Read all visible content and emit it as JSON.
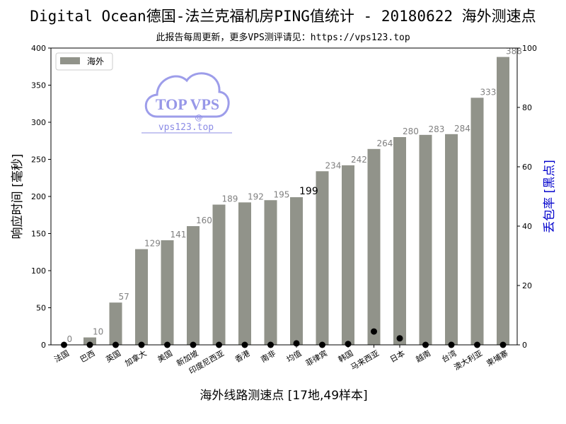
{
  "chart_data": {
    "type": "bar",
    "title": "Digital Ocean德国-法兰克福机房PING值统计 - 20180622 海外测速点",
    "subtitle": "此报告每周更新，更多VPS测评请见：https://vps123.top",
    "xlabel": "海外线路测速点 [17地,49样本]",
    "ylabel": "响应时间 [毫秒]",
    "y2label": "丢包率 [黑点]",
    "categories": [
      "法国",
      "巴西",
      "英国",
      "加拿大",
      "美国",
      "新加坡",
      "印度尼西亚",
      "香港",
      "南非",
      "均值",
      "菲律宾",
      "韩国",
      "马来西亚",
      "日本",
      "越南",
      "台湾",
      "澳大利亚",
      "柬埔寨"
    ],
    "series": [
      {
        "name": "海外",
        "values": [
          0,
          10,
          57,
          129,
          141,
          160,
          189,
          192,
          195,
          199,
          234,
          242,
          264,
          280,
          283,
          284,
          333,
          388
        ]
      }
    ],
    "loss_values": [
      0,
      0,
      0,
      0,
      0,
      0,
      0,
      0,
      0,
      0.5,
      0,
      0.3,
      4.5,
      2.2,
      0,
      0,
      0,
      0
    ],
    "value_labels": [
      "0",
      "10",
      "57",
      "129",
      "141",
      "160",
      "189",
      "192",
      "195",
      "199",
      "234",
      "242",
      "264",
      "280",
      "283",
      "284",
      "333",
      "388"
    ],
    "ylim": [
      0,
      400
    ],
    "yticks": [
      0,
      50,
      100,
      150,
      200,
      250,
      300,
      350,
      400
    ],
    "y2lim": [
      0,
      100
    ],
    "y2ticks": [
      0,
      20,
      40,
      60,
      80,
      100
    ],
    "highlight_category": "均值",
    "legend_position": "upper-left",
    "grid": false,
    "colors": {
      "bar": "#91938a",
      "label": "#808080",
      "highlight_label": "#000000",
      "loss_dot": "#000000",
      "y2_axis_title": "#0000cc",
      "watermark": "#8c8ce6"
    },
    "watermark": {
      "logo_text": "TOP VPS",
      "at": "@",
      "url": "vps123.top"
    }
  }
}
